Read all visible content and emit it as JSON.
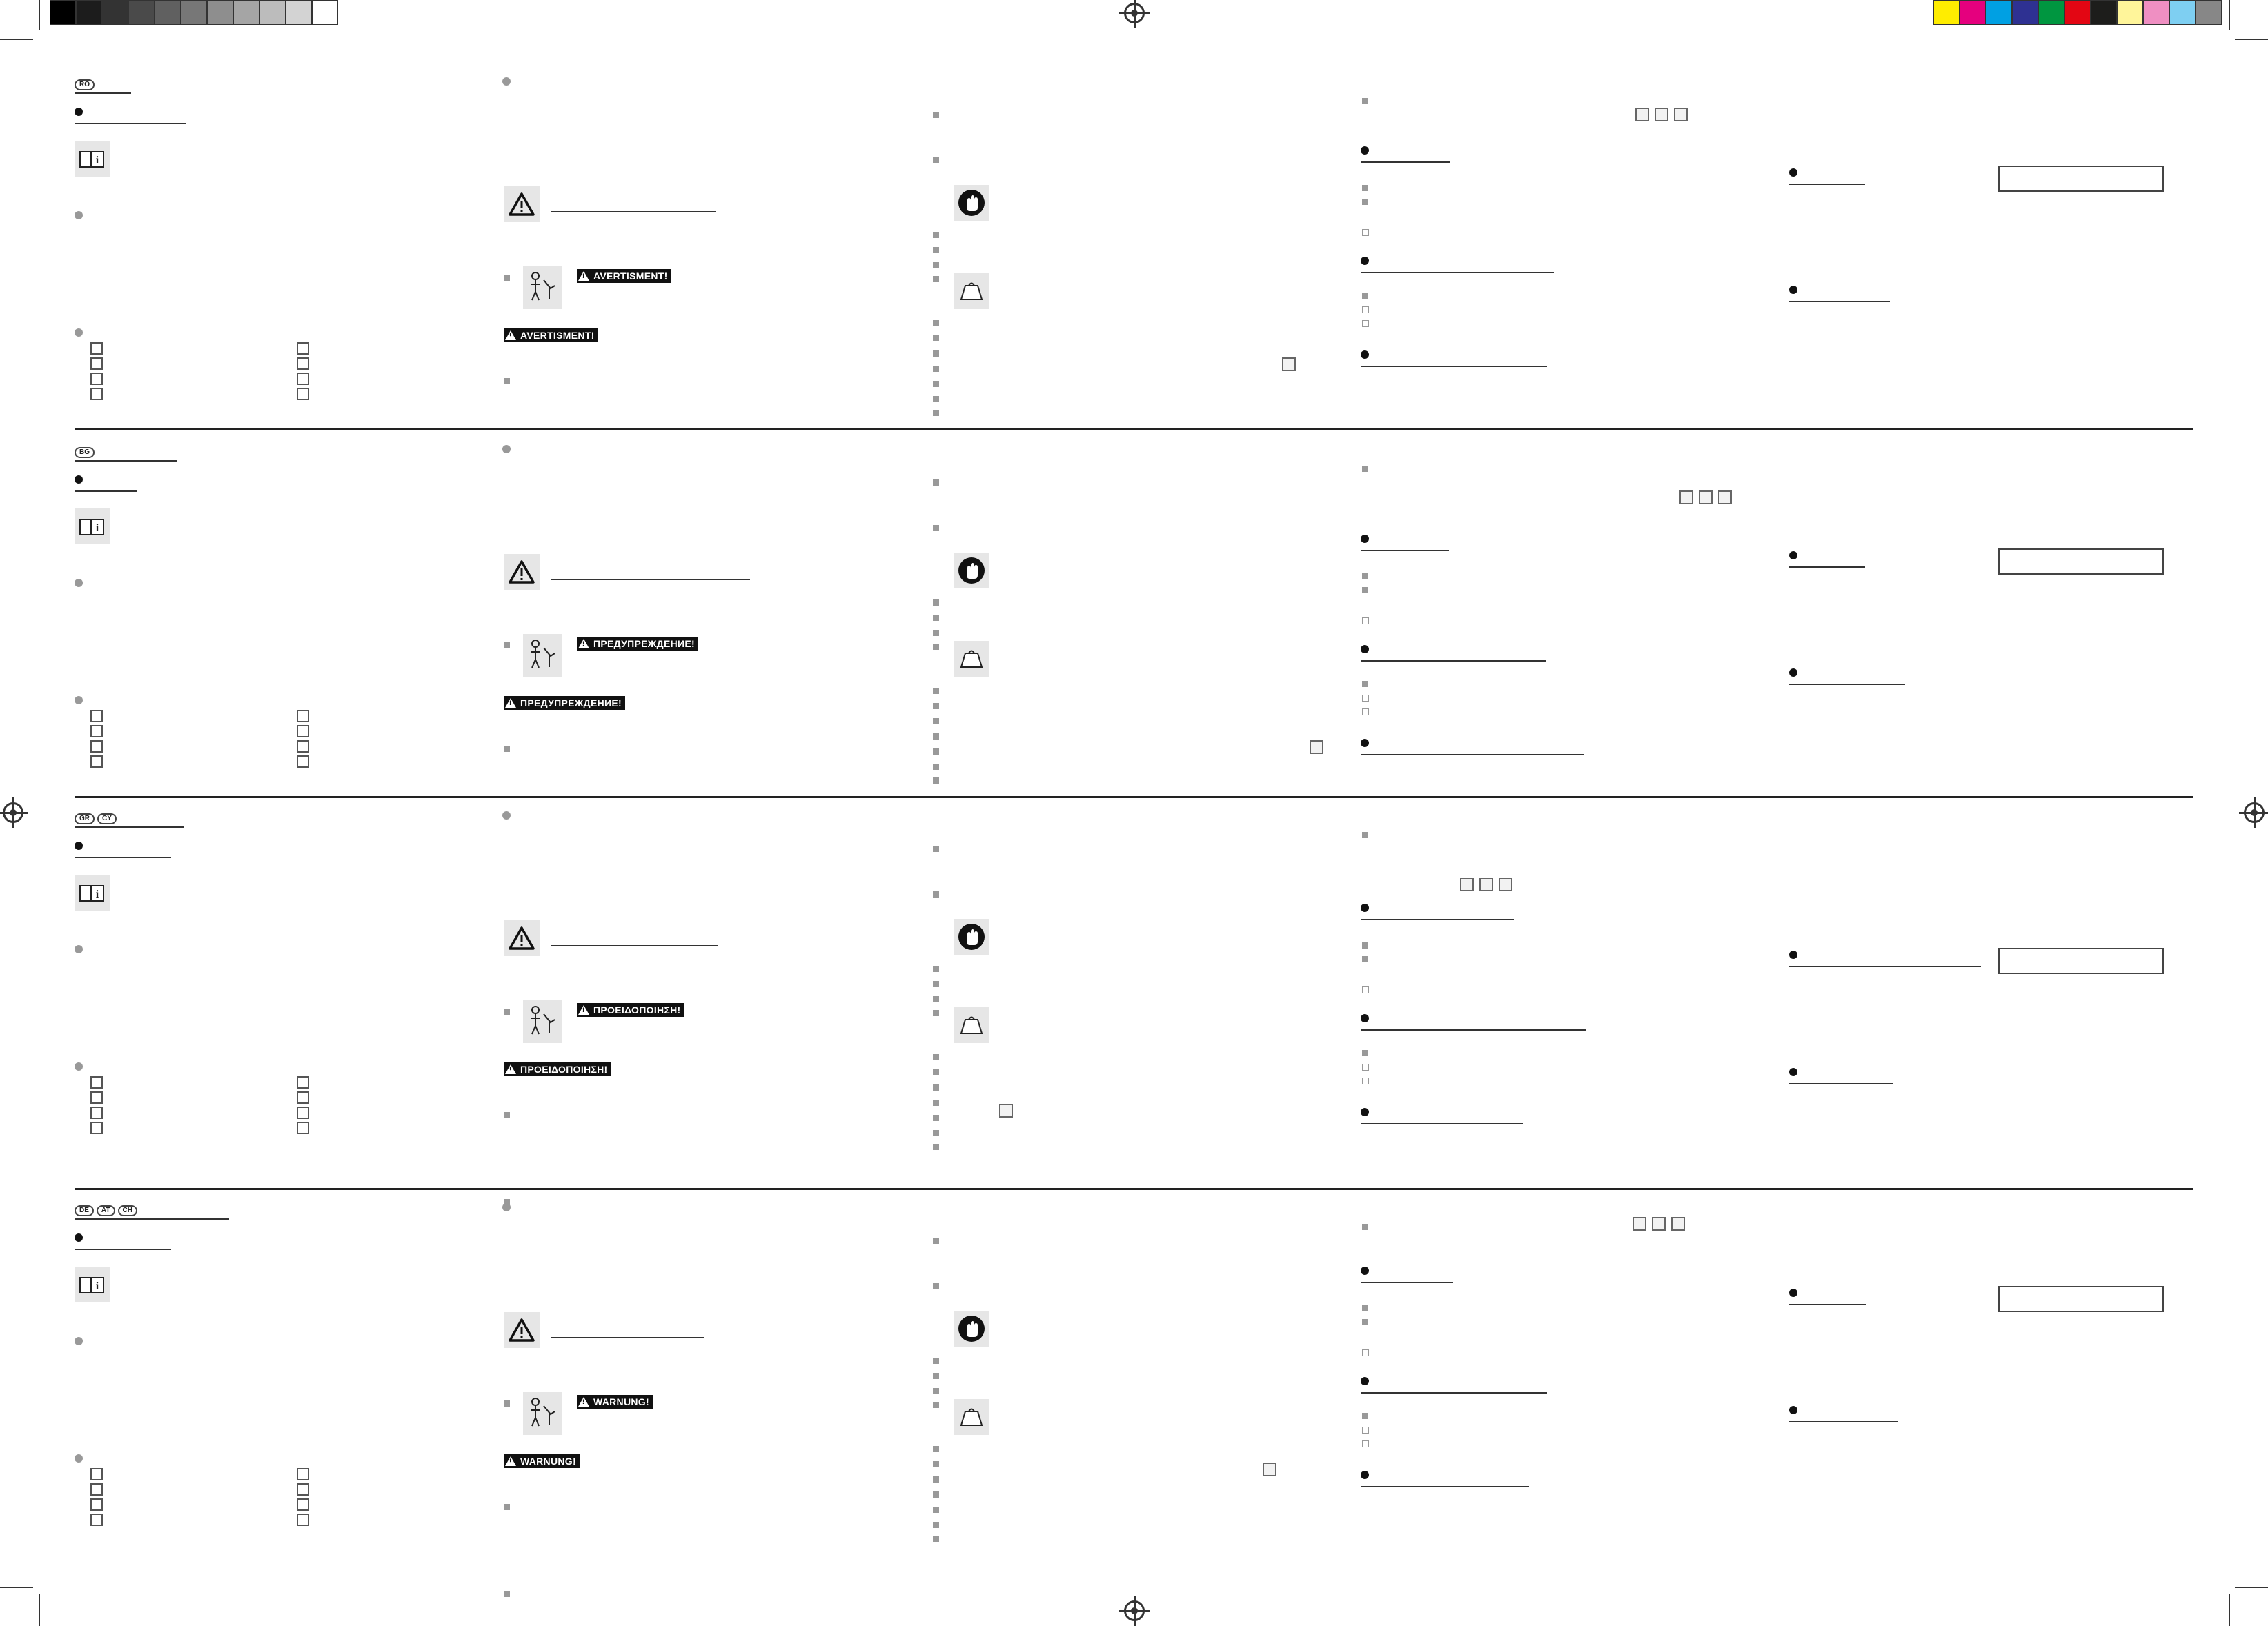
{
  "color_bar": {
    "grays": [
      "#000000",
      "#1c1c1c",
      "#333333",
      "#4a4a4a",
      "#606060",
      "#777777",
      "#8e8e8e",
      "#a5a5a5",
      "#bcbcbc",
      "#d3d3d3",
      "#ffffff"
    ],
    "colors": [
      "#ffed00",
      "#e5007e",
      "#00a0e3",
      "#2e3192",
      "#009640",
      "#e30613",
      "#1d1d1b",
      "#fff59a",
      "#ef8fc2",
      "#7ecff2",
      "#878787"
    ]
  },
  "icons": {
    "manual": "book-info-icon",
    "warning": "warning-triangle-icon",
    "child": "child-hazard-icon",
    "glove": "glove-icon",
    "tray": "tray-icon"
  },
  "sections": [
    {
      "languages": [
        "RO"
      ],
      "warning_label": "AVERTISMENT!"
    },
    {
      "languages": [
        "BG"
      ],
      "warning_label": "ПРЕДУПРЕЖДЕНИЕ!"
    },
    {
      "languages": [
        "GR",
        "CY"
      ],
      "warning_label": "ΠΡΟΕΙΔΟΠΟΙΗΣΗ!"
    },
    {
      "languages": [
        "DE",
        "AT",
        "CH"
      ],
      "warning_label": "WARNUNG!"
    }
  ]
}
